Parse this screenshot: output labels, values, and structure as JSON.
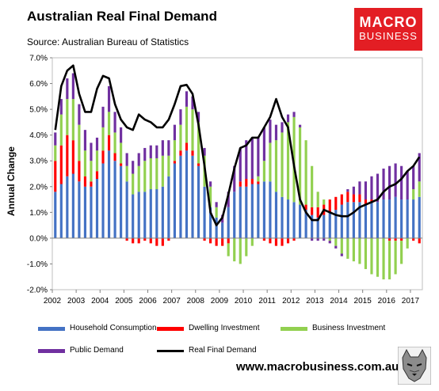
{
  "title": "Australian Real Final Demand",
  "subtitle": "Source: Australian Bureau of Statistics",
  "logo": {
    "line1": "MACRO",
    "line2": "BUSINESS"
  },
  "url": "www.macrobusiness.com.au",
  "colors": {
    "household": "#4472c4",
    "dwelling": "#ff0000",
    "business": "#92d050",
    "public": "#7030a0",
    "rfd": "#000000"
  },
  "chart_data": {
    "type": "bar",
    "subtype": "stacked bar with line overlay",
    "ylabel": "Annual Change",
    "ylim": [
      -2,
      7
    ],
    "yticks": [
      "-2.0%",
      "-1.0%",
      "0.0%",
      "1.0%",
      "2.0%",
      "3.0%",
      "4.0%",
      "5.0%",
      "6.0%",
      "7.0%"
    ],
    "xticks": [
      "2002",
      "2003",
      "2004",
      "2005",
      "2006",
      "2007",
      "2008",
      "2009",
      "2010",
      "2011",
      "2012",
      "2013",
      "2014",
      "2015",
      "2016",
      "2017"
    ],
    "x_start_year": 2002,
    "quarters_per_year": 4,
    "legend_position": "bottom",
    "series": [
      {
        "name": "Household Consumption",
        "key": "household",
        "values": [
          1.8,
          2.1,
          2.4,
          2.5,
          2.2,
          2.0,
          2.0,
          2.3,
          2.9,
          3.4,
          3.0,
          2.8,
          2.2,
          1.7,
          1.8,
          1.8,
          1.9,
          1.9,
          2.0,
          2.4,
          2.9,
          3.2,
          3.4,
          3.2,
          2.8,
          2.0,
          1.2,
          0.8,
          0.6,
          1.2,
          1.8,
          2.0,
          2.0,
          2.1,
          2.1,
          2.2,
          2.2,
          1.8,
          1.6,
          1.5,
          1.4,
          1.3,
          1.1,
          0.9,
          0.8,
          0.9,
          1.0,
          1.1,
          1.3,
          1.4,
          1.4,
          1.4,
          1.3,
          1.4,
          1.4,
          1.5,
          1.5,
          1.6,
          1.5,
          1.5,
          1.5,
          1.6
        ]
      },
      {
        "name": "Dwelling Investment",
        "key": "dwelling",
        "values": [
          1.2,
          1.5,
          1.6,
          1.3,
          0.8,
          0.4,
          0.2,
          0.3,
          0.5,
          0.6,
          0.3,
          0.1,
          -0.1,
          -0.2,
          -0.2,
          -0.1,
          -0.2,
          -0.3,
          -0.3,
          -0.1,
          0.1,
          0.2,
          0.3,
          0.2,
          0.1,
          -0.1,
          -0.2,
          -0.3,
          -0.3,
          -0.2,
          0.0,
          0.2,
          0.3,
          0.2,
          0.1,
          -0.1,
          -0.2,
          -0.3,
          -0.3,
          -0.2,
          -0.1,
          0.0,
          0.2,
          0.3,
          0.4,
          0.4,
          0.5,
          0.5,
          0.4,
          0.4,
          0.3,
          0.3,
          0.2,
          0.1,
          0.0,
          0.0,
          -0.1,
          -0.1,
          -0.1,
          0.0,
          -0.1,
          -0.2
        ]
      },
      {
        "name": "Business Investment",
        "key": "business",
        "values": [
          0.6,
          1.2,
          1.4,
          1.6,
          1.4,
          1.0,
          0.8,
          0.8,
          0.9,
          0.9,
          0.8,
          0.8,
          0.6,
          0.8,
          1.0,
          1.2,
          1.2,
          1.2,
          1.2,
          0.8,
          0.8,
          1.0,
          1.4,
          1.6,
          1.6,
          1.2,
          0.8,
          0.4,
          0.0,
          -0.5,
          -0.9,
          -1.0,
          -0.7,
          -0.3,
          0.2,
          0.8,
          1.5,
          2.0,
          2.5,
          3.0,
          3.3,
          3.0,
          2.5,
          1.6,
          0.6,
          0.2,
          -0.1,
          -0.3,
          -0.6,
          -0.8,
          -0.9,
          -1.0,
          -1.2,
          -1.4,
          -1.5,
          -1.6,
          -1.5,
          -1.3,
          -0.9,
          -0.4,
          0.4,
          0.6
        ]
      },
      {
        "name": "Public Demand",
        "key": "public",
        "values": [
          0.5,
          0.6,
          0.8,
          1.0,
          0.8,
          0.8,
          0.7,
          0.5,
          0.8,
          1.0,
          0.8,
          0.6,
          0.5,
          0.5,
          0.5,
          0.5,
          0.5,
          0.5,
          0.6,
          0.6,
          0.6,
          0.6,
          0.6,
          0.5,
          0.4,
          0.3,
          0.2,
          0.2,
          0.3,
          0.6,
          1.0,
          1.3,
          1.5,
          1.6,
          1.5,
          1.3,
          0.9,
          0.6,
          0.4,
          0.3,
          0.2,
          0.1,
          0.0,
          -0.1,
          -0.1,
          -0.1,
          -0.1,
          -0.1,
          -0.1,
          0.1,
          0.3,
          0.5,
          0.7,
          0.9,
          1.1,
          1.2,
          1.3,
          1.3,
          1.3,
          1.1,
          0.9,
          1.1
        ]
      },
      {
        "name": "Real Final Demand",
        "key": "rfd",
        "type": "line",
        "values": [
          4.2,
          5.9,
          6.5,
          6.7,
          5.6,
          4.9,
          4.9,
          5.8,
          6.3,
          6.2,
          5.2,
          4.6,
          4.3,
          4.2,
          4.8,
          4.6,
          4.5,
          4.3,
          4.3,
          4.6,
          5.2,
          5.9,
          5.95,
          5.6,
          4.4,
          2.8,
          1.0,
          0.5,
          0.8,
          1.7,
          2.7,
          3.5,
          3.6,
          3.9,
          3.9,
          4.3,
          4.7,
          5.4,
          4.7,
          4.3,
          2.8,
          1.5,
          1.0,
          0.7,
          0.7,
          1.1,
          1.0,
          0.9,
          0.85,
          0.85,
          1.0,
          1.2,
          1.3,
          1.4,
          1.5,
          1.8,
          2.0,
          2.1,
          2.3,
          2.6,
          2.8,
          3.15
        ]
      }
    ]
  }
}
